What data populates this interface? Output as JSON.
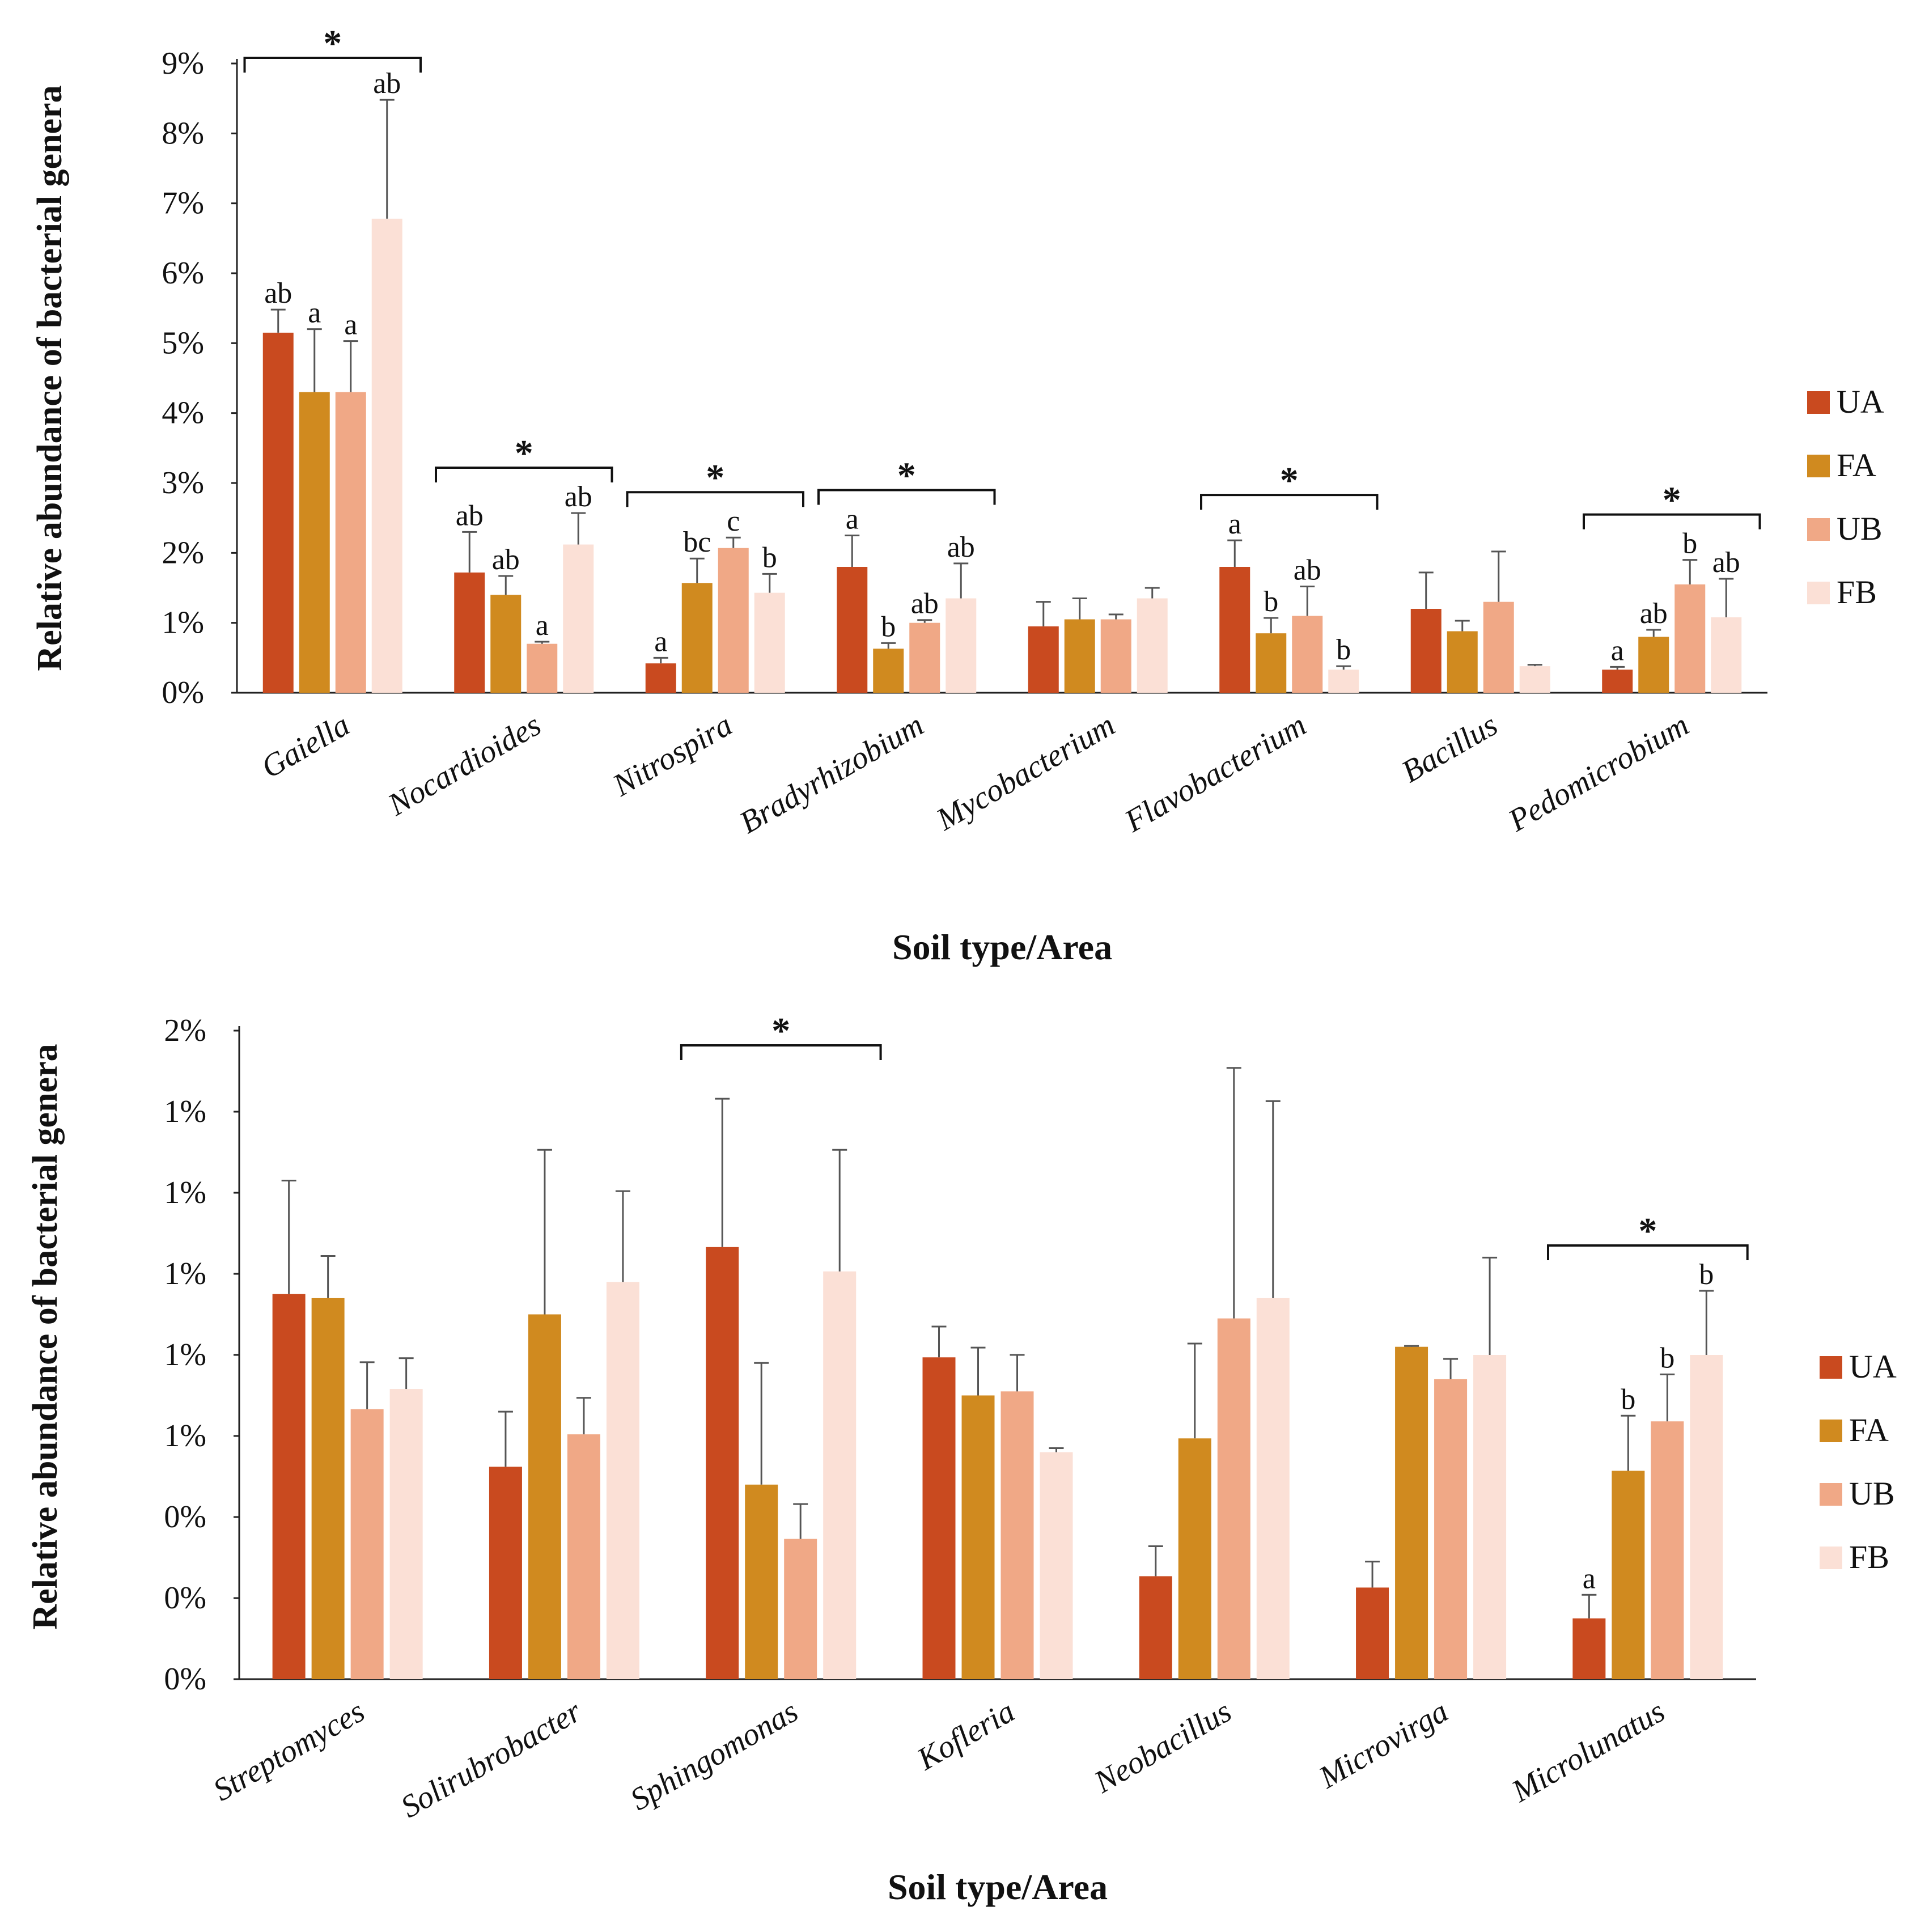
{
  "chart_data": [
    {
      "type": "bar",
      "ylabel": "Relative abundance of bacterial genera",
      "xlabel": "Soil type/Area",
      "ylim": [
        0,
        9
      ],
      "y_tick_labels": [
        "0%",
        "1%",
        "2%",
        "3%",
        "4%",
        "5%",
        "6%",
        "7%",
        "8%",
        "9%"
      ],
      "categories": [
        "Gaiella",
        "Nocardioides",
        "Nitrospira",
        "Bradyrhizobium",
        "Mycobacterium",
        "Flavobacterium",
        "Bacillus",
        "Pedomicrobium"
      ],
      "series": [
        {
          "name": "UA",
          "color": "#c94a1f",
          "values": [
            5.15,
            1.72,
            0.42,
            1.8,
            0.95,
            1.8,
            1.2,
            0.33
          ],
          "errors": [
            0.33,
            0.58,
            0.08,
            0.45,
            0.35,
            0.38,
            0.52,
            0.04
          ]
        },
        {
          "name": "FA",
          "color": "#d08a1f",
          "values": [
            4.3,
            1.4,
            1.57,
            0.63,
            1.05,
            0.85,
            0.88,
            0.8
          ],
          "errors": [
            0.9,
            0.27,
            0.35,
            0.08,
            0.3,
            0.22,
            0.15,
            0.1
          ]
        },
        {
          "name": "UB",
          "color": "#f0a886",
          "values": [
            4.3,
            0.7,
            2.07,
            1.0,
            1.05,
            1.1,
            1.3,
            1.55
          ],
          "errors": [
            0.73,
            0.03,
            0.15,
            0.04,
            0.07,
            0.42,
            0.72,
            0.35
          ]
        },
        {
          "name": "FB",
          "color": "#fbe0d6",
          "values": [
            6.78,
            2.12,
            1.43,
            1.35,
            1.35,
            0.33,
            0.38,
            1.08
          ],
          "errors": [
            1.7,
            0.45,
            0.27,
            0.5,
            0.15,
            0.05,
            0.02,
            0.55
          ]
        }
      ],
      "significance_letters": [
        [
          "ab",
          "a",
          "a",
          "ab"
        ],
        [
          "ab",
          "ab",
          "a",
          "ab"
        ],
        [
          "a",
          "bc",
          "c",
          "b"
        ],
        [
          "a",
          "b",
          "ab",
          "ab"
        ],
        [
          "",
          "",
          "",
          ""
        ],
        [
          "a",
          "b",
          "ab",
          "b"
        ],
        [
          "",
          "",
          "",
          ""
        ],
        [
          "a",
          "ab",
          "b",
          "ab"
        ]
      ],
      "significant_categories": [
        "Gaiella",
        "Nocardioides",
        "Nitrospira",
        "Bradyrhizobium",
        "Flavobacterium",
        "Pedomicrobium"
      ],
      "significance_marker": "*",
      "legend": [
        "UA",
        "FA",
        "UB",
        "FB"
      ]
    },
    {
      "type": "bar",
      "ylabel": "Relative abundance of bacterial genera",
      "xlabel": "Soil type/Area",
      "ylim": [
        0,
        8
      ],
      "y_tick_labels": [
        "0%",
        "0%",
        "0%",
        "1%",
        "1%",
        "1%",
        "1%",
        "1%",
        "2%"
      ],
      "categories": [
        "Streptomyces",
        "Solirubrobacter",
        "Sphingomonas",
        "Kofleria",
        "Neobacillus",
        "Microvirga",
        "Microlunatus"
      ],
      "series": [
        {
          "name": "UA",
          "color": "#c94a1f",
          "values": [
            4.75,
            2.62,
            5.33,
            3.97,
            1.27,
            1.13,
            0.75
          ],
          "errors": [
            1.4,
            0.68,
            1.83,
            0.38,
            0.37,
            0.32,
            0.29
          ]
        },
        {
          "name": "FA",
          "color": "#d08a1f",
          "values": [
            4.7,
            4.5,
            2.4,
            3.5,
            2.97,
            4.1,
            2.57
          ],
          "errors": [
            0.52,
            2.03,
            1.5,
            0.59,
            1.17,
            0.01,
            0.68
          ]
        },
        {
          "name": "UB",
          "color": "#f0a886",
          "values": [
            3.33,
            3.02,
            1.73,
            3.55,
            4.45,
            3.7,
            3.18
          ],
          "errors": [
            0.58,
            0.45,
            0.43,
            0.45,
            3.09,
            0.25,
            0.58
          ]
        },
        {
          "name": "FB",
          "color": "#fbe0d6",
          "values": [
            3.58,
            4.9,
            5.03,
            2.8,
            4.7,
            4.0,
            4.0
          ],
          "errors": [
            0.38,
            1.12,
            1.5,
            0.05,
            2.43,
            1.2,
            0.79
          ]
        }
      ],
      "significance_letters": [
        [
          "",
          "",
          "",
          ""
        ],
        [
          "",
          "",
          "",
          ""
        ],
        [
          "",
          "",
          "",
          ""
        ],
        [
          "",
          "",
          "",
          ""
        ],
        [
          "",
          "",
          "",
          ""
        ],
        [
          "",
          "",
          "",
          ""
        ],
        [
          "a",
          "b",
          "b",
          "b"
        ]
      ],
      "significant_categories": [
        "Sphingomonas",
        "Microlunatus"
      ],
      "significance_marker": "*",
      "legend": [
        "UA",
        "FA",
        "UB",
        "FB"
      ]
    }
  ]
}
